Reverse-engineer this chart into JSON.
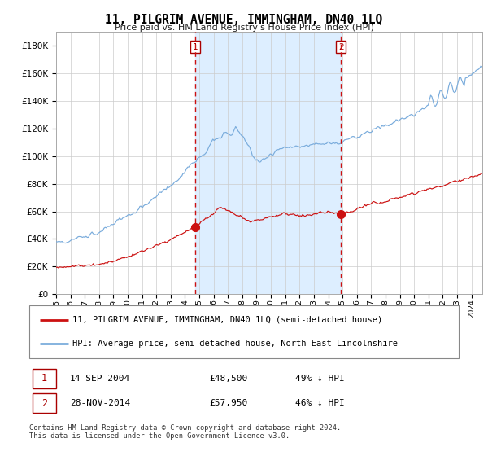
{
  "title": "11, PILGRIM AVENUE, IMMINGHAM, DN40 1LQ",
  "subtitle": "Price paid vs. HM Land Registry's House Price Index (HPI)",
  "hpi_label": "HPI: Average price, semi-detached house, North East Lincolnshire",
  "property_label": "11, PILGRIM AVENUE, IMMINGHAM, DN40 1LQ (semi-detached house)",
  "footer": "Contains HM Land Registry data © Crown copyright and database right 2024.\nThis data is licensed under the Open Government Licence v3.0.",
  "sale1_date": "14-SEP-2004",
  "sale1_price": "£48,500",
  "sale1_hpi": "49% ↓ HPI",
  "sale2_date": "28-NOV-2014",
  "sale2_price": "£57,950",
  "sale2_hpi": "46% ↓ HPI",
  "vline1_year": 2004.71,
  "vline2_year": 2014.9,
  "ylim": [
    0,
    190000
  ],
  "xlim_start": 1995.0,
  "xlim_end": 2024.75,
  "background_color": "#ffffff",
  "plot_bg_color": "#ffffff",
  "shading_color": "#ddeeff",
  "hpi_color": "#7aacdc",
  "property_color": "#cc1111",
  "grid_color": "#cccccc",
  "vline_color": "#cc1111"
}
